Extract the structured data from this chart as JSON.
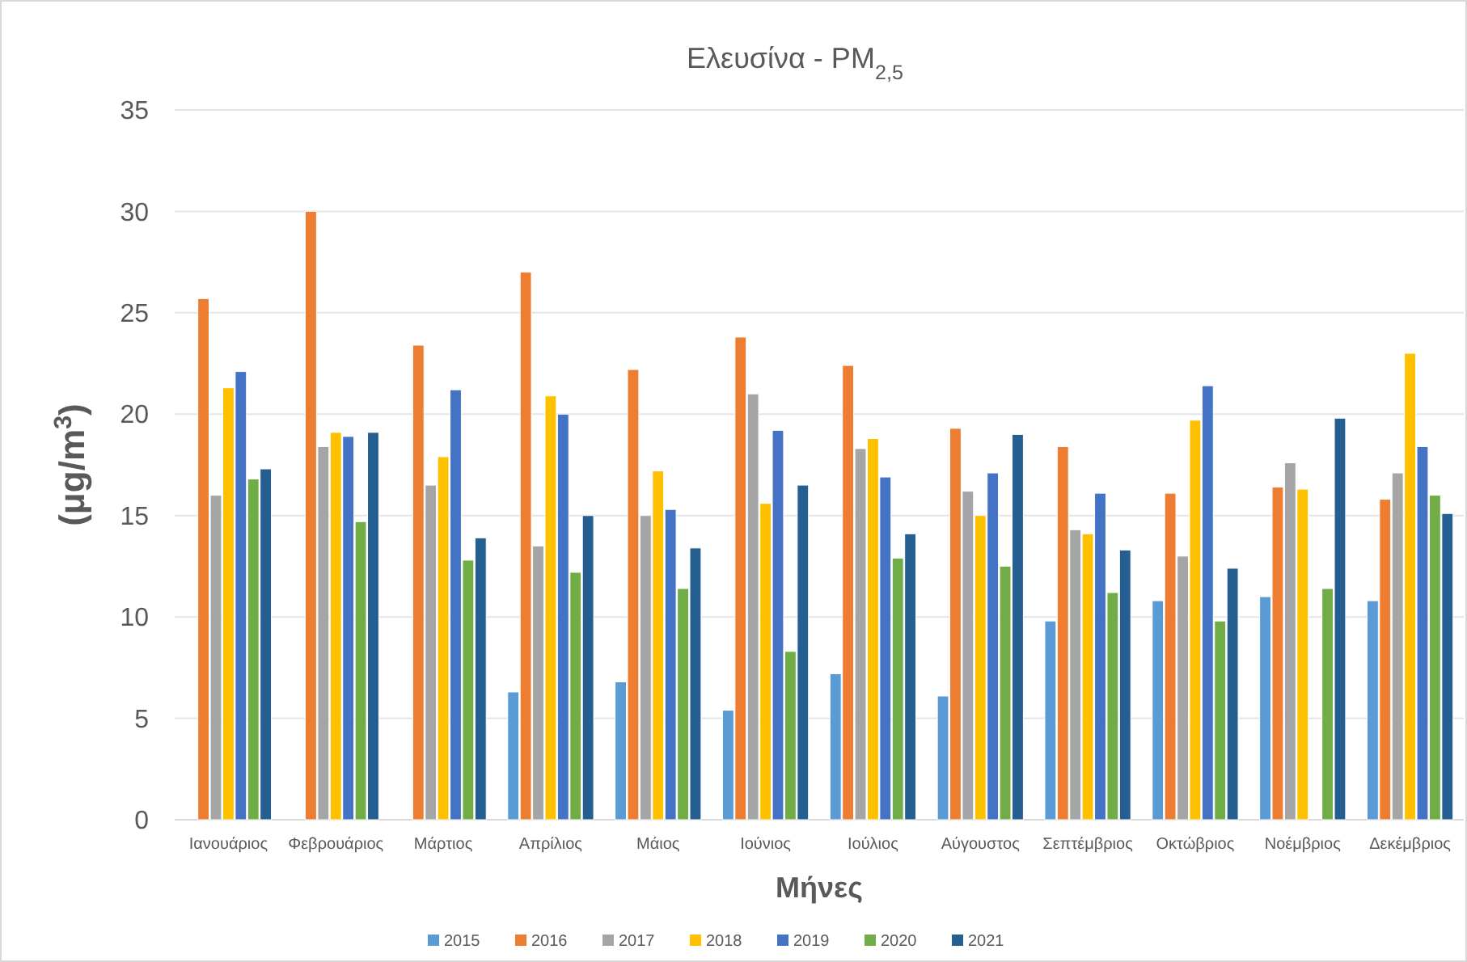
{
  "chart_data": {
    "type": "bar",
    "title": "Ελευσίνα - PM$_{2,5}$",
    "xlabel": "Μήνες",
    "ylabel": "(μg/m$^{3}$)",
    "categories": [
      "Ιανουάριος",
      "Φεβρουάριος",
      "Μάρτιος",
      "Απρίλιος",
      "Μάιος",
      "Ιούνιος",
      "Ιούλιος",
      "Αύγουστος",
      "Σεπτέμβριος",
      "Οκτώβριος",
      "Νοέμβριος",
      "Δεκέμβριος"
    ],
    "series": [
      {
        "name": "2015",
        "color": "#5b9bd5",
        "values": [
          null,
          null,
          null,
          6.3,
          6.8,
          5.4,
          7.2,
          6.1,
          9.8,
          10.8,
          11.0,
          10.8
        ]
      },
      {
        "name": "2016",
        "color": "#ed7d31",
        "values": [
          25.7,
          30.0,
          23.4,
          27.0,
          22.2,
          23.8,
          22.4,
          19.3,
          18.4,
          16.1,
          16.4,
          15.8
        ]
      },
      {
        "name": "2017",
        "color": "#a5a5a5",
        "values": [
          16.0,
          18.4,
          16.5,
          13.5,
          15.0,
          21.0,
          18.3,
          16.2,
          14.3,
          13.0,
          17.6,
          17.1
        ]
      },
      {
        "name": "2018",
        "color": "#ffc000",
        "values": [
          21.3,
          19.1,
          17.9,
          20.9,
          17.2,
          15.6,
          18.8,
          15.0,
          14.1,
          19.7,
          16.3,
          23.0
        ]
      },
      {
        "name": "2019",
        "color": "#4472c4",
        "values": [
          22.1,
          18.9,
          21.2,
          20.0,
          15.3,
          19.2,
          16.9,
          17.1,
          16.1,
          21.4,
          null,
          18.4
        ]
      },
      {
        "name": "2020",
        "color": "#70ad47",
        "values": [
          16.8,
          14.7,
          12.8,
          12.2,
          11.4,
          8.3,
          12.9,
          12.5,
          11.2,
          9.8,
          11.4,
          16.0
        ]
      },
      {
        "name": "2021",
        "color": "#255e91",
        "values": [
          17.3,
          19.1,
          13.9,
          15.0,
          13.4,
          16.5,
          14.1,
          19.0,
          13.3,
          12.4,
          19.8,
          15.1
        ]
      }
    ],
    "ylim": [
      0,
      35
    ],
    "yticks": [
      0,
      5,
      10,
      15,
      20,
      25,
      30,
      35
    ],
    "grid": "y",
    "legend": "bottom"
  }
}
